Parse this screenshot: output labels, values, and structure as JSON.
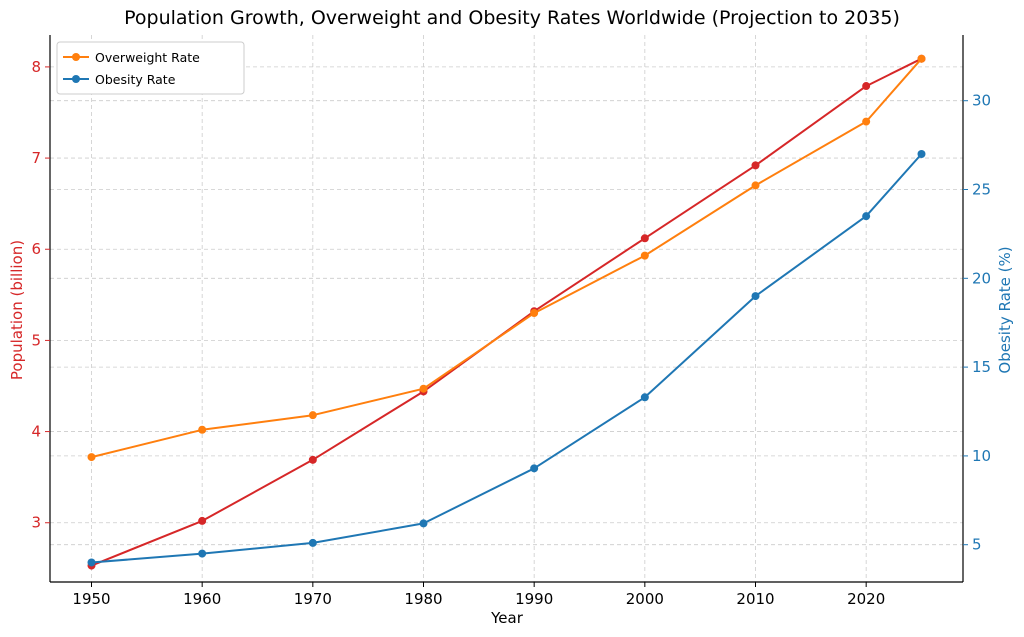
{
  "chart_data": {
    "type": "line",
    "title": "Population Growth, Overweight and Obesity Rates Worldwide (Projection to 2035)",
    "xlabel": "Year",
    "ylabel_left": "Population (billion)",
    "ylabel_right": "Obesity Rate (%)",
    "x": [
      1950,
      1960,
      1970,
      1980,
      1990,
      2000,
      2010,
      2020,
      2025
    ],
    "x_ticks": [
      1950,
      1960,
      1970,
      1980,
      1990,
      2000,
      2010,
      2020
    ],
    "xlim": [
      1946.25,
      2028.75
    ],
    "ylim_left": [
      2.35,
      8.35
    ],
    "ylim_right": [
      2.9,
      33.7
    ],
    "left_ticks": [
      3,
      4,
      5,
      6,
      7,
      8
    ],
    "right_ticks": [
      5,
      10,
      15,
      20,
      25,
      30
    ],
    "grid": true,
    "legend_position": "top-left",
    "series": [
      {
        "name": "",
        "axis": "left",
        "color": "#d62728",
        "values": [
          2.53,
          3.02,
          3.69,
          4.44,
          5.32,
          6.12,
          6.92,
          7.79,
          8.09
        ]
      },
      {
        "name": "Overweight Rate",
        "axis": "left",
        "color": "#ff7f0e",
        "values": [
          3.72,
          4.02,
          4.18,
          4.47,
          5.3,
          5.93,
          6.7,
          7.4,
          8.09
        ]
      },
      {
        "name": "Obesity Rate",
        "axis": "right",
        "color": "#1f77b4",
        "values": [
          4.0,
          4.5,
          5.1,
          6.2,
          9.3,
          13.3,
          19.0,
          23.5,
          27.0
        ]
      }
    ],
    "colors": {
      "left_axis": "#d62728",
      "right_axis": "#1f77b4",
      "grid": "#cccccc"
    }
  }
}
